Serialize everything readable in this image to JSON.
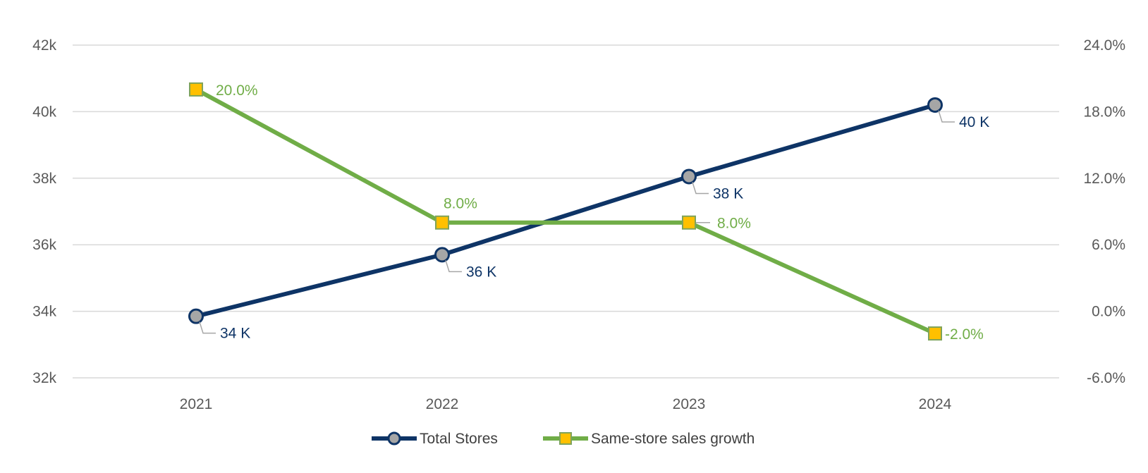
{
  "chart_data": {
    "type": "line",
    "categories": [
      "2021",
      "2022",
      "2023",
      "2024"
    ],
    "y_left": {
      "ylim": [
        32000,
        42000
      ],
      "ticks": [
        32000,
        34000,
        36000,
        38000,
        40000,
        42000
      ],
      "tick_labels": [
        "32k",
        "34k",
        "36k",
        "38k",
        "40k",
        "42k"
      ]
    },
    "y_right": {
      "ylim": [
        -6,
        24
      ],
      "ticks": [
        -6,
        0,
        6,
        12,
        18,
        24
      ],
      "tick_labels": [
        "-6.0%",
        "0.0%",
        "6.0%",
        "12.0%",
        "18.0%",
        "24.0%"
      ]
    },
    "grid": true,
    "legend_position": "bottom",
    "series": [
      {
        "name": "Total Stores",
        "axis": "left",
        "values": [
          33850,
          35700,
          38050,
          40200
        ],
        "labels": [
          "34 K",
          "36 K",
          "38 K",
          "40 K"
        ],
        "color": "#0e3466",
        "marker": "circle",
        "marker_fill": "#a6a6a6"
      },
      {
        "name": "Same-store sales growth",
        "axis": "right",
        "values": [
          20.0,
          8.0,
          8.0,
          -2.0
        ],
        "labels": [
          "20.0%",
          "8.0%",
          "8.0%",
          "-2.0%"
        ],
        "color": "#70ad47",
        "marker": "square",
        "marker_fill": "#ffc000"
      }
    ]
  }
}
